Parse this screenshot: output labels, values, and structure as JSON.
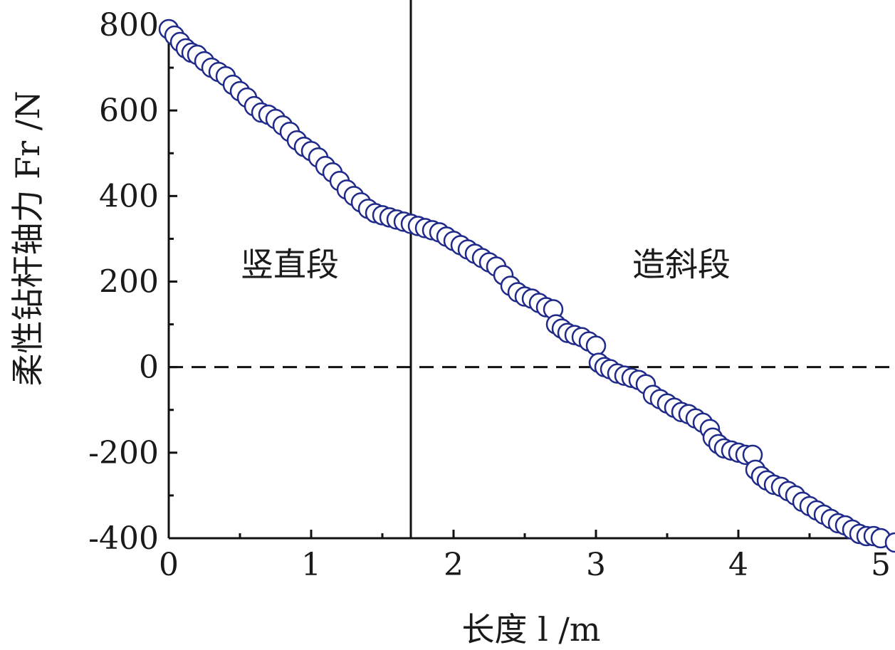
{
  "chart_data": {
    "type": "scatter",
    "xlabel": "长度 l /m",
    "ylabel": "柔性钻杆轴力 Fr /N",
    "xlim": [
      0,
      5
    ],
    "ylim": [
      -400,
      800
    ],
    "xticks": [
      "0",
      "1",
      "2",
      "3",
      "4",
      "5"
    ],
    "yticks": [
      "-400",
      "-200",
      "0",
      "200",
      "400",
      "600",
      "800"
    ],
    "grid": false,
    "reference_lines": {
      "vertical_x": 1.7,
      "horizontal_y": 0
    },
    "annotations": [
      {
        "text": "竖直段",
        "x": 0.85,
        "y": 240
      },
      {
        "text": "造斜段",
        "x": 3.6,
        "y": 240
      }
    ],
    "colors": {
      "marker_edge": "#1f2a8a",
      "marker_fill": "#ffffff",
      "axis": "#111111"
    },
    "series": [
      {
        "x": [
          0,
          0.04,
          0.08,
          0.12,
          0.16,
          0.2,
          0.25,
          0.3,
          0.35,
          0.4,
          0.45,
          0.5,
          0.55,
          0.6,
          0.65,
          0.7,
          0.75,
          0.8,
          0.85,
          0.9,
          0.95,
          1.0,
          1.05,
          1.1,
          1.15,
          1.2,
          1.25,
          1.3,
          1.35,
          1.4,
          1.45,
          1.5,
          1.55,
          1.6,
          1.65,
          1.7,
          1.75,
          1.8,
          1.85,
          1.9,
          1.95,
          2.0,
          2.05,
          2.1,
          2.15,
          2.2,
          2.25,
          2.3,
          2.35,
          2.4,
          2.45,
          2.5,
          2.55,
          2.6,
          2.65,
          2.7,
          2.72,
          2.76,
          2.8,
          2.85,
          2.9,
          2.95,
          3.0,
          3.02,
          3.06,
          3.1,
          3.15,
          3.2,
          3.25,
          3.3,
          3.35,
          3.4,
          3.45,
          3.5,
          3.55,
          3.6,
          3.65,
          3.7,
          3.75,
          3.8,
          3.82,
          3.86,
          3.9,
          3.95,
          4.0,
          4.05,
          4.1,
          4.12,
          4.16,
          4.2,
          4.25,
          4.3,
          4.35,
          4.4,
          4.45,
          4.5,
          4.55,
          4.6,
          4.65,
          4.7,
          4.75,
          4.8,
          4.85,
          4.9,
          4.95,
          5.0,
          5.1
        ],
        "y": [
          790,
          775,
          760,
          745,
          735,
          730,
          715,
          700,
          690,
          680,
          660,
          645,
          630,
          610,
          595,
          590,
          580,
          565,
          550,
          530,
          515,
          505,
          490,
          470,
          455,
          435,
          415,
          400,
          385,
          370,
          360,
          355,
          350,
          345,
          340,
          335,
          330,
          325,
          320,
          315,
          305,
          295,
          285,
          275,
          265,
          255,
          245,
          235,
          215,
          190,
          175,
          165,
          160,
          150,
          140,
          135,
          100,
          90,
          80,
          75,
          70,
          60,
          50,
          10,
          0,
          -5,
          -15,
          -20,
          -25,
          -30,
          -40,
          -65,
          -75,
          -85,
          -95,
          -105,
          -110,
          -120,
          -130,
          -145,
          -165,
          -180,
          -190,
          -195,
          -200,
          -205,
          -205,
          -240,
          -255,
          -265,
          -275,
          -280,
          -290,
          -300,
          -315,
          -325,
          -335,
          -345,
          -355,
          -365,
          -370,
          -380,
          -390,
          -395,
          -395,
          -400,
          -410
        ]
      }
    ]
  }
}
